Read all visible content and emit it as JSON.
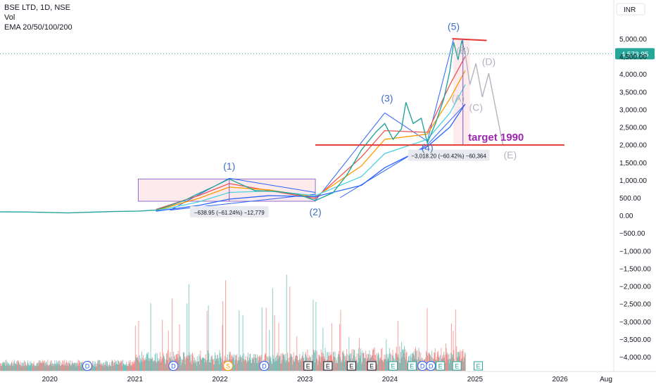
{
  "legend": {
    "line1": "BSE LTD, 1D, NSE",
    "line2": "Vol",
    "line3": "EMA 20/50/100/200"
  },
  "currency": "INR",
  "price_label": "4,573.95",
  "colors": {
    "axis_text": "#131722",
    "price_badge": "#26a69a",
    "pattern_blue": "#2962ff",
    "wave_blue": "#3d6fc7",
    "projection_gray": "#b2b5be",
    "target_red": "#e53935",
    "target_text": "#9c27b0",
    "range_fill": "#fde7ea",
    "range_border": "#7e57c2",
    "ema_20": "#ef5350",
    "ema_50": "#ff9800",
    "ema_100": "#4dd0e1",
    "ema_200": "#2962ff",
    "vol_up": "#26a69a",
    "vol_down": "#ef5350"
  },
  "annotations": {
    "wave_labels": [
      {
        "text": "(1)",
        "x": "2022-02-10",
        "y": 1300
      },
      {
        "text": "(2)",
        "x": "2023-02-15",
        "y": 5
      },
      {
        "text": "(3)",
        "x": "2023-12-20",
        "y": 3220
      },
      {
        "text": "(4)",
        "x": "2024-06-10",
        "y": 1820
      },
      {
        "text": "(5)",
        "x": "2024-10-01",
        "y": 5250
      }
    ],
    "projection_labels": [
      {
        "text": "(A)",
        "x": "2024-10-20",
        "y": 3220
      },
      {
        "text": "(B)",
        "x": "2024-11-10",
        "y": 4570
      },
      {
        "text": "(C)",
        "x": "2025-01-05",
        "y": 2960
      },
      {
        "text": "(D)",
        "x": "2025-03-01",
        "y": 4250
      },
      {
        "text": "(E)",
        "x": "2025-06-01",
        "y": 1620
      }
    ],
    "target_text": "target 1990",
    "measure_1": "−638.95 (−61.24%) −12,779",
    "measure_2": "−3,018.20 (−60.42%) −60,364"
  },
  "events": [
    {
      "t": "D",
      "x": "2020-06-10"
    },
    {
      "t": "D",
      "x": "2021-06-15"
    },
    {
      "t": "S",
      "x": "2022-02-05"
    },
    {
      "t": "D",
      "x": "2022-07-10"
    },
    {
      "t": "E",
      "x": "2023-01-15"
    },
    {
      "t": "E",
      "x": "2023-04-10"
    },
    {
      "t": "E",
      "x": "2023-07-20"
    },
    {
      "t": "E",
      "x": "2023-10-15"
    },
    {
      "t": "E",
      "x": "2024-01-15"
    },
    {
      "t": "E",
      "x": "2024-04-05"
    },
    {
      "t": "D",
      "x": "2024-05-20"
    },
    {
      "t": "D",
      "x": "2024-06-25"
    },
    {
      "t": "E",
      "x": "2024-08-05"
    },
    {
      "t": "E",
      "x": "2024-10-15"
    },
    {
      "t": "E",
      "x": "2025-01-15"
    }
  ],
  "chart_data": {
    "type": "line",
    "x_ticks": [
      "2020",
      "2021",
      "2022",
      "2023",
      "2024",
      "2025",
      "2026",
      "Aug"
    ],
    "x_tick_dates": [
      "2020-01-01",
      "2021-01-01",
      "2022-01-01",
      "2023-01-01",
      "2024-01-01",
      "2025-01-01",
      "2026-01-01",
      "2026-08-01"
    ],
    "y_ticks": [
      5000,
      4500,
      4000,
      3500,
      3000,
      2500,
      2000,
      1500,
      1000,
      500,
      0,
      -500,
      -1000,
      -1500,
      -2000,
      -2500,
      -3000,
      -3500,
      -4000
    ],
    "y_tick_labels": [
      "5,000.00",
      "4,500.00",
      "4,000.00",
      "3,500.00",
      "3,000.00",
      "2,500.00",
      "2,000.00",
      "1,500.00",
      "1,000.00",
      "500.00",
      "0.00",
      "−500.00",
      "−1,000.00",
      "−1,500.00",
      "−2,000.00",
      "−2,500.00",
      "−3,000.00",
      "−3,500.00",
      "−4,000.00"
    ],
    "y_axis_label": "INR",
    "ylim": [
      -4300,
      5450
    ],
    "xlim": [
      "2019-06-01",
      "2026-08-20"
    ],
    "last_price": 4573.95,
    "price_series": [
      {
        "x": "2019-06-01",
        "y": 100
      },
      {
        "x": "2019-10-01",
        "y": 95
      },
      {
        "x": "2020-03-20",
        "y": 70
      },
      {
        "x": "2020-06-01",
        "y": 85
      },
      {
        "x": "2020-10-01",
        "y": 110
      },
      {
        "x": "2021-01-15",
        "y": 120
      },
      {
        "x": "2021-04-01",
        "y": 150
      },
      {
        "x": "2021-06-01",
        "y": 280
      },
      {
        "x": "2021-08-01",
        "y": 420
      },
      {
        "x": "2021-10-01",
        "y": 620
      },
      {
        "x": "2021-12-01",
        "y": 800
      },
      {
        "x": "2022-02-10",
        "y": 1030
      },
      {
        "x": "2022-04-01",
        "y": 880
      },
      {
        "x": "2022-06-01",
        "y": 700
      },
      {
        "x": "2022-09-01",
        "y": 680
      },
      {
        "x": "2022-12-01",
        "y": 600
      },
      {
        "x": "2023-02-15",
        "y": 420
      },
      {
        "x": "2023-05-01",
        "y": 640
      },
      {
        "x": "2023-07-01",
        "y": 1150
      },
      {
        "x": "2023-09-01",
        "y": 1850
      },
      {
        "x": "2023-11-01",
        "y": 2350
      },
      {
        "x": "2023-12-10",
        "y": 2600
      },
      {
        "x": "2024-01-15",
        "y": 2150
      },
      {
        "x": "2024-02-20",
        "y": 2450
      },
      {
        "x": "2024-03-10",
        "y": 3200
      },
      {
        "x": "2024-04-10",
        "y": 2600
      },
      {
        "x": "2024-05-15",
        "y": 2750
      },
      {
        "x": "2024-06-10",
        "y": 2050
      },
      {
        "x": "2024-07-15",
        "y": 2600
      },
      {
        "x": "2024-08-20",
        "y": 3300
      },
      {
        "x": "2024-09-15",
        "y": 4100
      },
      {
        "x": "2024-10-01",
        "y": 4900
      },
      {
        "x": "2024-10-20",
        "y": 4400
      },
      {
        "x": "2024-11-05",
        "y": 4950
      },
      {
        "x": "2024-11-20",
        "y": 4573.95
      }
    ],
    "ema": [
      {
        "name": "EMA 20",
        "points": [
          {
            "x": "2021-04-01",
            "y": 170
          },
          {
            "x": "2021-10-01",
            "y": 560
          },
          {
            "x": "2022-02-10",
            "y": 900
          },
          {
            "x": "2022-08-01",
            "y": 700
          },
          {
            "x": "2023-02-15",
            "y": 480
          },
          {
            "x": "2023-09-01",
            "y": 1650
          },
          {
            "x": "2023-12-10",
            "y": 2400
          },
          {
            "x": "2024-06-10",
            "y": 2350
          },
          {
            "x": "2024-09-15",
            "y": 3700
          },
          {
            "x": "2024-11-20",
            "y": 4500
          }
        ]
      },
      {
        "name": "EMA 50",
        "points": [
          {
            "x": "2021-04-01",
            "y": 140
          },
          {
            "x": "2021-10-01",
            "y": 480
          },
          {
            "x": "2022-02-10",
            "y": 800
          },
          {
            "x": "2022-08-01",
            "y": 720
          },
          {
            "x": "2023-02-15",
            "y": 520
          },
          {
            "x": "2023-09-01",
            "y": 1400
          },
          {
            "x": "2023-12-10",
            "y": 2150
          },
          {
            "x": "2024-06-10",
            "y": 2300
          },
          {
            "x": "2024-09-15",
            "y": 3300
          },
          {
            "x": "2024-11-20",
            "y": 4100
          }
        ]
      },
      {
        "name": "EMA 100",
        "points": [
          {
            "x": "2021-04-01",
            "y": 130
          },
          {
            "x": "2021-10-01",
            "y": 380
          },
          {
            "x": "2022-02-10",
            "y": 650
          },
          {
            "x": "2022-08-01",
            "y": 690
          },
          {
            "x": "2023-02-15",
            "y": 560
          },
          {
            "x": "2023-09-01",
            "y": 1100
          },
          {
            "x": "2023-12-10",
            "y": 1750
          },
          {
            "x": "2024-06-10",
            "y": 2150
          },
          {
            "x": "2024-09-15",
            "y": 2900
          },
          {
            "x": "2024-11-20",
            "y": 3700
          }
        ]
      },
      {
        "name": "EMA 200",
        "points": [
          {
            "x": "2021-04-01",
            "y": 120
          },
          {
            "x": "2021-10-01",
            "y": 280
          },
          {
            "x": "2022-02-10",
            "y": 460
          },
          {
            "x": "2022-08-01",
            "y": 560
          },
          {
            "x": "2023-02-15",
            "y": 530
          },
          {
            "x": "2023-09-01",
            "y": 850
          },
          {
            "x": "2023-12-10",
            "y": 1350
          },
          {
            "x": "2024-06-10",
            "y": 1950
          },
          {
            "x": "2024-09-15",
            "y": 2500
          },
          {
            "x": "2024-11-20",
            "y": 3150
          }
        ]
      }
    ],
    "elliott_waves": [
      {
        "x": "2021-06-01",
        "y": 150
      },
      {
        "x": "2022-02-10",
        "y": 1050
      },
      {
        "x": "2023-02-15",
        "y": 420
      },
      {
        "x": "2023-12-10",
        "y": 2900
      },
      {
        "x": "2024-06-10",
        "y": 2100
      },
      {
        "x": "2024-10-01",
        "y": 5000
      }
    ],
    "projection": [
      {
        "x": "2024-11-20",
        "y": 4573.95
      },
      {
        "x": "2024-12-10",
        "y": 3700
      },
      {
        "x": "2025-01-05",
        "y": 4300
      },
      {
        "x": "2025-02-01",
        "y": 3350
      },
      {
        "x": "2025-03-01",
        "y": 4020
      },
      {
        "x": "2025-05-01",
        "y": 1990
      }
    ],
    "resistance_line": {
      "x1": "2024-09-25",
      "x2": "2025-02-20",
      "y1": 5000,
      "y2": 4950
    },
    "target_line": {
      "x1": "2023-02-15",
      "x2": "2026-01-20",
      "y": 1990
    },
    "range_boxes": [
      {
        "x1": "2021-01-15",
        "x2": "2023-02-15",
        "y1": 400,
        "y2": 1030
      },
      {
        "x1": "2024-09-30",
        "x2": "2024-12-10",
        "y1": 2000,
        "y2": 5000
      }
    ],
    "triangle_lines": [
      {
        "x1": "2021-06-01",
        "y1": 150,
        "x2": "2023-02-15",
        "y2": 600
      },
      {
        "x1": "2021-06-01",
        "y1": 150,
        "x2": "2022-02-10",
        "y2": 1050
      },
      {
        "x1": "2022-02-10",
        "y1": 1050,
        "x2": "2023-02-15",
        "y2": 650
      }
    ],
    "channel_lines": [
      {
        "x1": "2023-02-15",
        "y1": 420,
        "x2": "2023-12-10",
        "y2": 2900
      },
      {
        "x1": "2023-12-10",
        "y1": 2900,
        "x2": "2024-06-10",
        "y2": 2100
      },
      {
        "x1": "2024-06-10",
        "y1": 2100,
        "x2": "2024-10-01",
        "y2": 5000
      },
      {
        "x1": "2023-06-01",
        "y1": 500,
        "x2": "2024-06-10",
        "y2": 2000
      },
      {
        "x1": "2024-06-10",
        "y1": 2000,
        "x2": "2024-11-20",
        "y2": 3150
      }
    ]
  }
}
